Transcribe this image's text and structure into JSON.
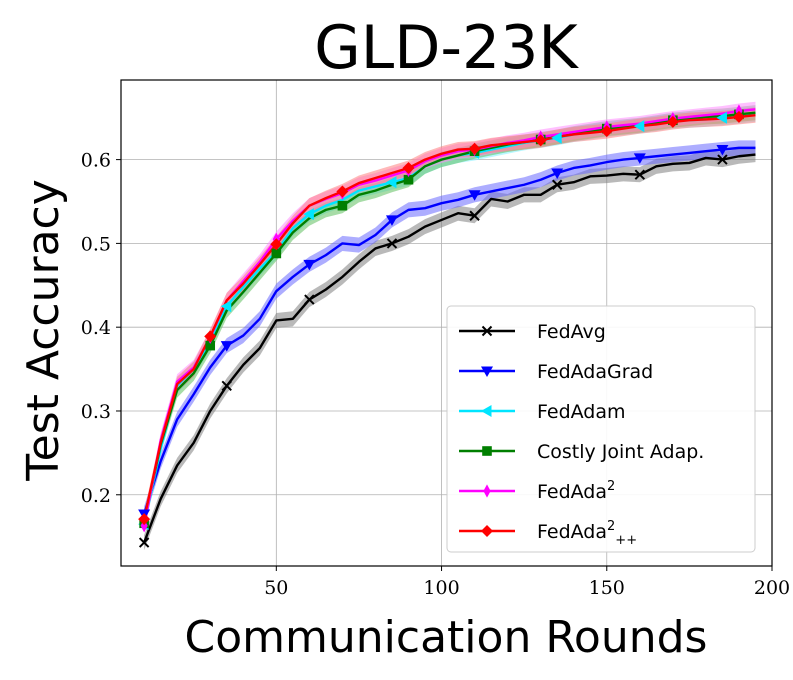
{
  "chart_data": {
    "type": "line",
    "title": "GLD-23K",
    "xlabel": "Communication Rounds",
    "ylabel": "Test Accuracy",
    "xlim": [
      3,
      200
    ],
    "ylim": [
      0.115,
      0.695
    ],
    "xticks": [
      50,
      100,
      150,
      200
    ],
    "yticks": [
      0.2,
      0.3,
      0.4,
      0.5,
      0.6
    ],
    "xtick_labels": [
      "50",
      "100",
      "150",
      "200"
    ],
    "ytick_labels": [
      "0.2",
      "0.3",
      "0.4",
      "0.5",
      "0.6"
    ],
    "grid": true,
    "legend_position": "lower-right",
    "series": [
      {
        "name": "FedAvg",
        "legend_base": "FedAvg",
        "legend_sup": "",
        "legend_sub": "",
        "color": "#000000",
        "band": "#808080",
        "marker": "x",
        "markevery": 5,
        "x": [
          10,
          15,
          20,
          25,
          30,
          35,
          40,
          45,
          50,
          55,
          60,
          65,
          70,
          75,
          80,
          85,
          90,
          95,
          100,
          105,
          110,
          115,
          120,
          125,
          130,
          135,
          140,
          145,
          150,
          155,
          160,
          165,
          170,
          175,
          180,
          185,
          190,
          195
        ],
        "y": [
          0.143,
          0.195,
          0.235,
          0.262,
          0.3,
          0.33,
          0.355,
          0.375,
          0.408,
          0.41,
          0.433,
          0.445,
          0.46,
          0.478,
          0.494,
          0.5,
          0.508,
          0.52,
          0.528,
          0.536,
          0.533,
          0.553,
          0.55,
          0.558,
          0.558,
          0.57,
          0.573,
          0.58,
          0.581,
          0.583,
          0.582,
          0.592,
          0.595,
          0.596,
          0.602,
          0.6,
          0.604,
          0.606
        ]
      },
      {
        "name": "FedAdaGrad",
        "legend_base": "FedAdaGrad",
        "legend_sup": "",
        "legend_sub": "",
        "color": "#0000ff",
        "band": "#6a6aff",
        "marker": "triangle-down",
        "markevery": 5,
        "x": [
          10,
          15,
          20,
          25,
          30,
          35,
          40,
          45,
          50,
          55,
          60,
          65,
          70,
          75,
          80,
          85,
          90,
          95,
          100,
          105,
          110,
          115,
          120,
          125,
          130,
          135,
          140,
          145,
          150,
          155,
          160,
          165,
          170,
          175,
          180,
          185,
          190,
          195
        ],
        "y": [
          0.177,
          0.24,
          0.29,
          0.32,
          0.352,
          0.378,
          0.39,
          0.41,
          0.443,
          0.46,
          0.475,
          0.486,
          0.5,
          0.498,
          0.51,
          0.528,
          0.54,
          0.542,
          0.548,
          0.552,
          0.558,
          0.562,
          0.566,
          0.57,
          0.576,
          0.584,
          0.59,
          0.593,
          0.597,
          0.6,
          0.602,
          0.604,
          0.606,
          0.608,
          0.61,
          0.612,
          0.614,
          0.614
        ]
      },
      {
        "name": "FedAdam",
        "legend_base": "FedAdam",
        "legend_sup": "",
        "legend_sub": "",
        "color": "#00e5ff",
        "band": "#7ff0ff",
        "marker": "triangle-left",
        "markevery": 5,
        "x": [
          10,
          15,
          20,
          25,
          30,
          35,
          40,
          45,
          50,
          55,
          60,
          65,
          70,
          75,
          80,
          85,
          90,
          95,
          100,
          105,
          110,
          115,
          120,
          125,
          130,
          135,
          140,
          145,
          150,
          155,
          160,
          165,
          170,
          175,
          180,
          185,
          190,
          195
        ],
        "y": [
          0.165,
          0.255,
          0.33,
          0.35,
          0.382,
          0.425,
          0.448,
          0.47,
          0.49,
          0.518,
          0.535,
          0.545,
          0.552,
          0.563,
          0.568,
          0.573,
          0.578,
          0.592,
          0.6,
          0.605,
          0.608,
          0.612,
          0.616,
          0.62,
          0.623,
          0.626,
          0.63,
          0.633,
          0.636,
          0.638,
          0.64,
          0.643,
          0.646,
          0.647,
          0.648,
          0.65,
          0.652,
          0.654
        ]
      },
      {
        "name": "Costly Joint Adap.",
        "legend_base": "Costly Joint Adap.",
        "legend_sup": "",
        "legend_sub": "",
        "color": "#007f00",
        "band": "#5fbf5f",
        "marker": "square",
        "markevery": 4,
        "x": [
          10,
          15,
          20,
          25,
          30,
          35,
          40,
          45,
          50,
          55,
          60,
          65,
          70,
          75,
          80,
          85,
          90,
          95,
          100,
          105,
          110,
          115,
          120,
          125,
          130,
          135,
          140,
          145,
          150,
          155,
          160,
          165,
          170,
          175,
          180,
          185,
          190,
          195
        ],
        "y": [
          0.166,
          0.26,
          0.325,
          0.345,
          0.378,
          0.42,
          0.442,
          0.465,
          0.488,
          0.513,
          0.53,
          0.54,
          0.545,
          0.558,
          0.563,
          0.57,
          0.576,
          0.592,
          0.6,
          0.605,
          0.61,
          0.614,
          0.618,
          0.621,
          0.624,
          0.627,
          0.631,
          0.634,
          0.637,
          0.639,
          0.641,
          0.644,
          0.647,
          0.649,
          0.651,
          0.652,
          0.654,
          0.656
        ]
      },
      {
        "name": "FedAda²",
        "legend_base": "FedAda",
        "legend_sup": "2",
        "legend_sub": "",
        "color": "#ff00ff",
        "band": "#ff8cff",
        "marker": "thin-diamond",
        "markevery": 4,
        "x": [
          10,
          15,
          20,
          25,
          30,
          35,
          40,
          45,
          50,
          55,
          60,
          65,
          70,
          75,
          80,
          85,
          90,
          95,
          100,
          105,
          110,
          115,
          120,
          125,
          130,
          135,
          140,
          145,
          150,
          155,
          160,
          165,
          170,
          175,
          180,
          185,
          190,
          195
        ],
        "y": [
          0.163,
          0.265,
          0.335,
          0.352,
          0.388,
          0.432,
          0.455,
          0.478,
          0.505,
          0.527,
          0.545,
          0.553,
          0.56,
          0.57,
          0.575,
          0.581,
          0.587,
          0.598,
          0.605,
          0.61,
          0.612,
          0.616,
          0.62,
          0.623,
          0.627,
          0.63,
          0.633,
          0.636,
          0.639,
          0.641,
          0.643,
          0.646,
          0.649,
          0.651,
          0.653,
          0.655,
          0.658,
          0.66
        ]
      },
      {
        "name": "FedAda²₊₊",
        "legend_base": "FedAda",
        "legend_sup": "2",
        "legend_sub": "++",
        "color": "#ff0000",
        "band": "#ff8080",
        "marker": "diamond",
        "markevery": 4,
        "x": [
          10,
          15,
          20,
          25,
          30,
          35,
          40,
          45,
          50,
          55,
          60,
          65,
          70,
          75,
          80,
          85,
          90,
          95,
          100,
          105,
          110,
          115,
          120,
          125,
          130,
          135,
          140,
          145,
          150,
          155,
          160,
          165,
          170,
          175,
          180,
          185,
          190,
          195
        ],
        "y": [
          0.171,
          0.262,
          0.332,
          0.35,
          0.389,
          0.432,
          0.452,
          0.475,
          0.499,
          0.524,
          0.545,
          0.554,
          0.562,
          0.572,
          0.578,
          0.584,
          0.59,
          0.6,
          0.607,
          0.612,
          0.613,
          0.617,
          0.619,
          0.621,
          0.623,
          0.627,
          0.63,
          0.632,
          0.634,
          0.637,
          0.64,
          0.642,
          0.645,
          0.647,
          0.648,
          0.649,
          0.651,
          0.653
        ]
      }
    ]
  }
}
